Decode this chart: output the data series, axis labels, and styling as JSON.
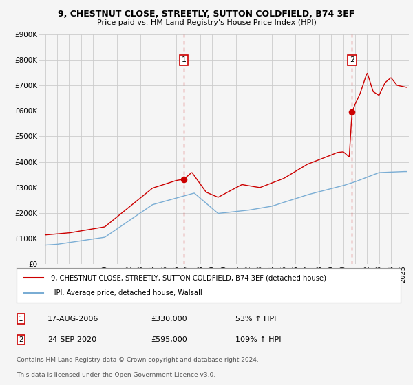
{
  "title": "9, CHESTNUT CLOSE, STREETLY, SUTTON COLDFIELD, B74 3EF",
  "subtitle": "Price paid vs. HM Land Registry's House Price Index (HPI)",
  "hpi_label": "HPI: Average price, detached house, Walsall",
  "property_label": "9, CHESTNUT CLOSE, STREETLY, SUTTON COLDFIELD, B74 3EF (detached house)",
  "property_color": "#cc0000",
  "hpi_color": "#7aadd4",
  "vline_color": "#cc0000",
  "annotation_box_color": "#cc0000",
  "background_color": "#f5f5f5",
  "plot_bg_color": "#f5f5f5",
  "grid_color": "#cccccc",
  "ylim": [
    0,
    900000
  ],
  "yticks": [
    0,
    100000,
    200000,
    300000,
    400000,
    500000,
    600000,
    700000,
    800000,
    900000
  ],
  "ytick_labels": [
    "£0",
    "£100K",
    "£200K",
    "£300K",
    "£400K",
    "£500K",
    "£600K",
    "£700K",
    "£800K",
    "£900K"
  ],
  "xlim_start": 1994.5,
  "xlim_end": 2025.5,
  "xticks": [
    1995,
    1996,
    1997,
    1998,
    1999,
    2000,
    2001,
    2002,
    2003,
    2004,
    2005,
    2006,
    2007,
    2008,
    2009,
    2010,
    2011,
    2012,
    2013,
    2014,
    2015,
    2016,
    2017,
    2018,
    2019,
    2020,
    2021,
    2022,
    2023,
    2024,
    2025
  ],
  "sale1_x": 2006.625,
  "sale1_y": 330000,
  "sale1_label": "1",
  "sale1_date": "17-AUG-2006",
  "sale1_price": "£330,000",
  "sale1_hpi": "53% ↑ HPI",
  "sale2_x": 2020.73,
  "sale2_y": 595000,
  "sale2_label": "2",
  "sale2_date": "24-SEP-2020",
  "sale2_price": "£595,000",
  "sale2_hpi": "109% ↑ HPI",
  "footnote_line1": "Contains HM Land Registry data © Crown copyright and database right 2024.",
  "footnote_line2": "This data is licensed under the Open Government Licence v3.0."
}
